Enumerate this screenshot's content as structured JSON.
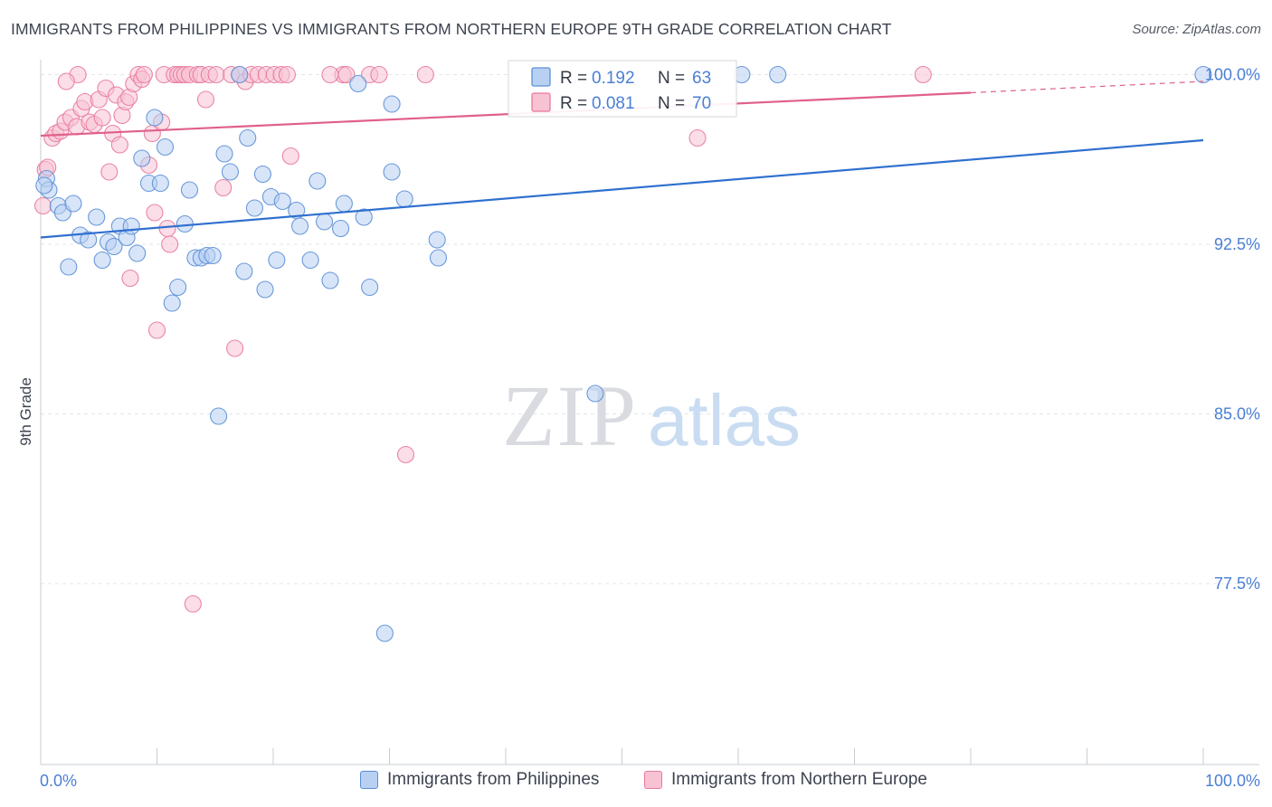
{
  "title": "IMMIGRANTS FROM PHILIPPINES VS IMMIGRANTS FROM NORTHERN EUROPE 9TH GRADE CORRELATION CHART",
  "source": "Source: ZipAtlas.com",
  "watermark": {
    "zip": "ZIP",
    "atlas": "atlas"
  },
  "colors": {
    "blue": "#5b8fd6",
    "blue_fill": "#b8d0f2",
    "blue_line": "#2f6fcf",
    "pink": "#e8799d",
    "pink_fill": "#f7c3d3",
    "pink_line": "#e0608a",
    "axis_text": "#4a7fd4",
    "grid": "#e3e6ea"
  },
  "chart_data": {
    "type": "scatter",
    "xlabel": "",
    "ylabel": "9th Grade",
    "xlim": [
      0,
      100
    ],
    "ylim": [
      69.5,
      100.5
    ],
    "x_tick_labels": [
      "0.0%",
      "100.0%"
    ],
    "y_ticks": [
      77.5,
      85.0,
      92.5,
      100.0
    ],
    "y_tick_labels": [
      "77.5%",
      "85.0%",
      "92.5%",
      "100.0%"
    ],
    "grid": true,
    "legend": {
      "placement": "top-center",
      "entries": [
        {
          "r_label": "R =",
          "r_value": "0.192",
          "n_label": "N =",
          "n_value": "63"
        },
        {
          "r_label": "R =",
          "r_value": "0.081",
          "n_label": "N =",
          "n_value": "70"
        }
      ]
    },
    "series": [
      {
        "name": "Immigrants from Philippines",
        "color": "#5b8fd6",
        "trend": {
          "x": [
            0,
            100
          ],
          "y": [
            92.8,
            97.1
          ],
          "dashed_from": null
        },
        "points": [
          [
            0.5,
            95.4
          ],
          [
            0.7,
            94.9
          ],
          [
            1.5,
            94.2
          ],
          [
            1.9,
            93.9
          ],
          [
            2.4,
            91.5
          ],
          [
            2.8,
            94.3
          ],
          [
            3.4,
            92.9
          ],
          [
            4.1,
            92.7
          ],
          [
            4.8,
            93.7
          ],
          [
            5.3,
            91.8
          ],
          [
            5.8,
            92.6
          ],
          [
            6.3,
            92.4
          ],
          [
            6.8,
            93.3
          ],
          [
            7.4,
            92.8
          ],
          [
            7.8,
            93.3
          ],
          [
            8.3,
            92.1
          ],
          [
            8.7,
            96.3
          ],
          [
            9.3,
            95.2
          ],
          [
            9.8,
            98.1
          ],
          [
            10.3,
            95.2
          ],
          [
            10.7,
            96.8
          ],
          [
            11.3,
            89.9
          ],
          [
            11.8,
            90.6
          ],
          [
            12.4,
            93.4
          ],
          [
            12.8,
            94.9
          ],
          [
            13.3,
            91.9
          ],
          [
            13.8,
            91.9
          ],
          [
            14.3,
            92.0
          ],
          [
            14.8,
            92.0
          ],
          [
            15.3,
            84.9
          ],
          [
            15.8,
            96.5
          ],
          [
            16.3,
            95.7
          ],
          [
            17.1,
            100.0
          ],
          [
            17.5,
            91.3
          ],
          [
            17.8,
            97.2
          ],
          [
            18.4,
            94.1
          ],
          [
            19.1,
            95.6
          ],
          [
            19.3,
            90.5
          ],
          [
            19.8,
            94.6
          ],
          [
            20.3,
            91.8
          ],
          [
            20.8,
            94.4
          ],
          [
            22.0,
            94.0
          ],
          [
            22.3,
            93.3
          ],
          [
            23.2,
            91.8
          ],
          [
            23.8,
            95.3
          ],
          [
            24.4,
            93.5
          ],
          [
            24.9,
            90.9
          ],
          [
            25.8,
            93.2
          ],
          [
            26.1,
            94.3
          ],
          [
            27.3,
            99.6
          ],
          [
            27.8,
            93.7
          ],
          [
            28.3,
            90.6
          ],
          [
            29.6,
            75.3
          ],
          [
            30.2,
            98.7
          ],
          [
            30.2,
            95.7
          ],
          [
            31.3,
            94.5
          ],
          [
            34.1,
            92.7
          ],
          [
            34.2,
            91.9
          ],
          [
            47.7,
            85.9
          ],
          [
            60.3,
            100.0
          ],
          [
            63.4,
            100.0
          ],
          [
            100.0,
            100.0
          ],
          [
            0.3,
            95.1
          ]
        ]
      },
      {
        "name": "Immigrants from Northern Europe",
        "color": "#e8799d",
        "trend": {
          "x": [
            0,
            80,
            100
          ],
          "y": [
            97.3,
            99.2,
            99.7
          ],
          "dashed_from": 80
        },
        "points": [
          [
            0.2,
            94.2
          ],
          [
            0.4,
            95.8
          ],
          [
            0.6,
            95.9
          ],
          [
            1.0,
            97.2
          ],
          [
            1.3,
            97.4
          ],
          [
            1.7,
            97.5
          ],
          [
            2.1,
            97.9
          ],
          [
            2.6,
            98.1
          ],
          [
            3.1,
            97.7
          ],
          [
            3.5,
            98.5
          ],
          [
            3.8,
            98.8
          ],
          [
            4.2,
            97.9
          ],
          [
            4.6,
            97.8
          ],
          [
            5.0,
            98.9
          ],
          [
            5.3,
            98.1
          ],
          [
            5.6,
            99.4
          ],
          [
            5.9,
            95.7
          ],
          [
            6.2,
            97.4
          ],
          [
            6.5,
            99.1
          ],
          [
            6.8,
            96.9
          ],
          [
            7.0,
            98.2
          ],
          [
            7.3,
            98.8
          ],
          [
            7.6,
            99.0
          ],
          [
            7.7,
            91.0
          ],
          [
            8.0,
            99.6
          ],
          [
            8.4,
            100.0
          ],
          [
            8.7,
            99.8
          ],
          [
            8.9,
            100.0
          ],
          [
            9.3,
            96.0
          ],
          [
            9.6,
            97.4
          ],
          [
            9.8,
            93.9
          ],
          [
            10.0,
            88.7
          ],
          [
            10.4,
            97.9
          ],
          [
            10.6,
            100.0
          ],
          [
            10.9,
            93.2
          ],
          [
            11.1,
            92.5
          ],
          [
            11.5,
            100.0
          ],
          [
            11.8,
            100.0
          ],
          [
            12.1,
            100.0
          ],
          [
            12.4,
            100.0
          ],
          [
            12.8,
            100.0
          ],
          [
            13.1,
            76.6
          ],
          [
            13.5,
            100.0
          ],
          [
            13.8,
            100.0
          ],
          [
            14.2,
            98.9
          ],
          [
            14.5,
            100.0
          ],
          [
            15.1,
            100.0
          ],
          [
            15.7,
            95.0
          ],
          [
            16.4,
            100.0
          ],
          [
            16.7,
            87.9
          ],
          [
            17.1,
            100.0
          ],
          [
            17.6,
            99.7
          ],
          [
            18.1,
            100.0
          ],
          [
            18.7,
            100.0
          ],
          [
            19.4,
            100.0
          ],
          [
            20.1,
            100.0
          ],
          [
            20.7,
            100.0
          ],
          [
            21.2,
            100.0
          ],
          [
            21.5,
            96.4
          ],
          [
            26.0,
            100.0
          ],
          [
            26.3,
            100.0
          ],
          [
            28.3,
            100.0
          ],
          [
            29.1,
            100.0
          ],
          [
            31.4,
            83.2
          ],
          [
            33.1,
            100.0
          ],
          [
            56.5,
            97.2
          ],
          [
            75.9,
            100.0
          ],
          [
            24.9,
            100.0
          ],
          [
            3.2,
            100.0
          ],
          [
            2.2,
            99.7
          ]
        ]
      }
    ]
  }
}
